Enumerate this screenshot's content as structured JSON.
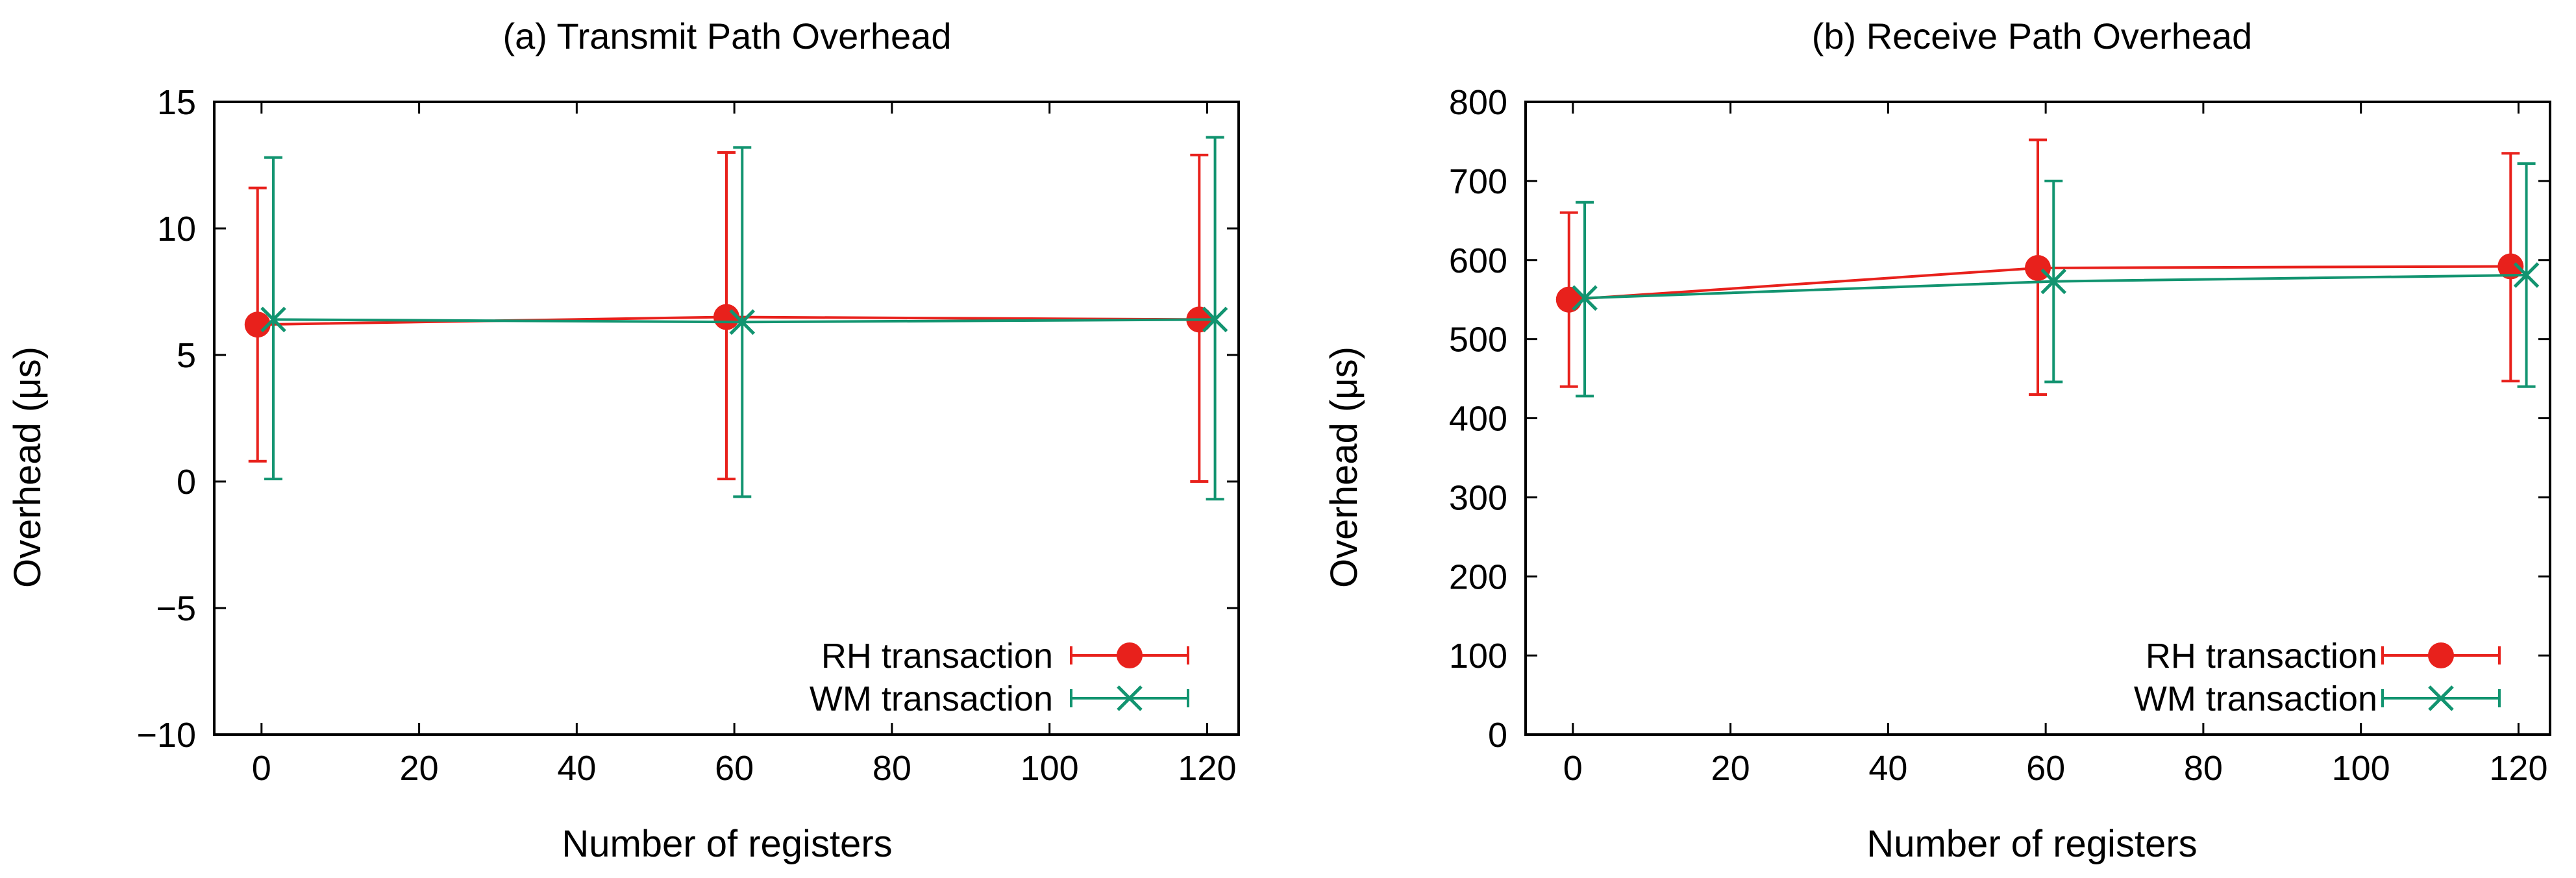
{
  "colors": {
    "rh": "#e8211c",
    "wm": "#129470",
    "axis": "#000000"
  },
  "chart_data": [
    {
      "type": "line",
      "title": "(a) Transmit Path Overhead",
      "xlabel": "Number of registers",
      "ylabel": "Overhead (μs)",
      "xlim": [
        -6,
        124
      ],
      "ylim": [
        -10,
        15
      ],
      "xticks": [
        0,
        20,
        40,
        60,
        80,
        100,
        120
      ],
      "xtick_labels": [
        "0",
        "20",
        "40",
        "60",
        "80",
        "100",
        "120"
      ],
      "yticks": [
        -10,
        -5,
        0,
        5,
        10,
        15
      ],
      "ytick_labels": [
        "−10",
        "−5",
        "0",
        "5",
        "10",
        "15"
      ],
      "legend_position": "bottom-right",
      "series": [
        {
          "name": "RH transaction",
          "marker": "circle",
          "color": "#e8211c",
          "x": [
            -0.5,
            59,
            119
          ],
          "y": [
            6.2,
            6.5,
            6.4
          ],
          "err_low": [
            0.8,
            0.1,
            0.0
          ],
          "err_high": [
            11.6,
            13.0,
            12.9
          ]
        },
        {
          "name": "WM transaction",
          "marker": "x",
          "color": "#129470",
          "x": [
            1.5,
            61,
            121
          ],
          "y": [
            6.4,
            6.3,
            6.4
          ],
          "err_low": [
            0.1,
            -0.6,
            -0.7
          ],
          "err_high": [
            12.8,
            13.2,
            13.6
          ]
        }
      ]
    },
    {
      "type": "line",
      "title": "(b) Receive Path Overhead",
      "xlabel": "Number of registers",
      "ylabel": "Overhead (μs)",
      "xlim": [
        -6,
        124
      ],
      "ylim": [
        0,
        800
      ],
      "xticks": [
        0,
        20,
        40,
        60,
        80,
        100,
        120
      ],
      "xtick_labels": [
        "0",
        "20",
        "40",
        "60",
        "80",
        "100",
        "120"
      ],
      "yticks": [
        0,
        100,
        200,
        300,
        400,
        500,
        600,
        700,
        800
      ],
      "ytick_labels": [
        "0",
        "100",
        "200",
        "300",
        "400",
        "500",
        "600",
        "700",
        "800"
      ],
      "legend_position": "bottom-right",
      "series": [
        {
          "name": "RH transaction",
          "marker": "circle",
          "color": "#e8211c",
          "x": [
            -0.5,
            59,
            119
          ],
          "y": [
            550,
            590,
            592
          ],
          "err_low": [
            440,
            430,
            447
          ],
          "err_high": [
            660,
            752,
            735
          ]
        },
        {
          "name": "WM transaction",
          "marker": "x",
          "color": "#129470",
          "x": [
            1.5,
            61,
            121
          ],
          "y": [
            552,
            573,
            581
          ],
          "err_low": [
            428,
            446,
            440
          ],
          "err_high": [
            673,
            700,
            722
          ]
        }
      ]
    }
  ]
}
